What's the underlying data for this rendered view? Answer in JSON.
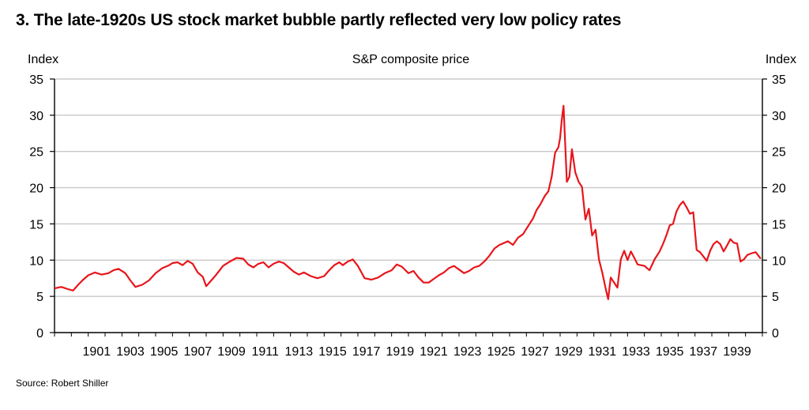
{
  "title": "3.  The late-1920s US stock market bubble partly reflected very low policy rates",
  "source": "Source: Robert Shiller",
  "chart_data": {
    "type": "line",
    "subtitle": "S&P composite price",
    "ylabel_left": "Index",
    "ylabel_right": "Index",
    "ylim": [
      0,
      35
    ],
    "yticks": [
      0,
      5,
      10,
      15,
      20,
      25,
      30,
      35
    ],
    "xlim": [
      1899,
      1941
    ],
    "xticks": [
      "1901",
      "1903",
      "1905",
      "1907",
      "1909",
      "1911",
      "1913",
      "1915",
      "1917",
      "1919",
      "1921",
      "1923",
      "1925",
      "1927",
      "1929",
      "1931",
      "1933",
      "1935",
      "1937",
      "1939"
    ],
    "grid": true,
    "legend": "none",
    "colors": {
      "line": "#e8151b",
      "grid": "#c8c8c8",
      "axis": "#000000"
    },
    "series": [
      {
        "x": [
          1899.0,
          1899.4,
          1899.8,
          1900.1,
          1900.4,
          1900.7,
          1901.0,
          1901.4,
          1901.8,
          1902.2,
          1902.5,
          1902.8,
          1903.2,
          1903.5,
          1903.8,
          1904.2,
          1904.6,
          1905.0,
          1905.4,
          1905.8,
          1906.0,
          1906.3,
          1906.6,
          1906.9,
          1907.2,
          1907.5,
          1907.8,
          1908.0,
          1908.3,
          1908.6,
          1909.0,
          1909.4,
          1909.8,
          1910.2,
          1910.5,
          1910.8,
          1911.1,
          1911.4,
          1911.7,
          1912.0,
          1912.3,
          1912.6,
          1912.9,
          1913.2,
          1913.5,
          1913.8,
          1914.2,
          1914.6,
          1915.0,
          1915.3,
          1915.6,
          1915.9,
          1916.1,
          1916.4,
          1916.7,
          1917.0,
          1917.4,
          1917.8,
          1918.2,
          1918.6,
          1919.0,
          1919.3,
          1919.6,
          1920.0,
          1920.3,
          1920.6,
          1920.9,
          1921.2,
          1921.5,
          1921.8,
          1922.1,
          1922.4,
          1922.7,
          1923.0,
          1923.3,
          1923.6,
          1923.9,
          1924.2,
          1924.5,
          1924.8,
          1925.1,
          1925.4,
          1925.6,
          1925.9,
          1926.2,
          1926.5,
          1926.8,
          1927.1,
          1927.4,
          1927.6,
          1927.8,
          1928.1,
          1928.3,
          1928.5,
          1928.7,
          1928.9,
          1929.0,
          1929.1,
          1929.2,
          1929.4,
          1929.55,
          1929.7,
          1929.9,
          1930.1,
          1930.3,
          1930.5,
          1930.7,
          1930.9,
          1931.1,
          1931.3,
          1931.5,
          1931.7,
          1931.85,
          1932.0,
          1932.2,
          1932.4,
          1932.6,
          1932.8,
          1933.0,
          1933.2,
          1933.4,
          1933.6,
          1933.8,
          1934.0,
          1934.3,
          1934.6,
          1934.9,
          1935.1,
          1935.3,
          1935.5,
          1935.7,
          1935.9,
          1936.1,
          1936.3,
          1936.5,
          1936.7,
          1936.9,
          1937.1,
          1937.3,
          1937.5,
          1937.7,
          1937.9,
          1938.1,
          1938.3,
          1938.5,
          1938.7,
          1938.9,
          1939.1,
          1939.3,
          1939.5,
          1939.7,
          1939.9,
          1940.1,
          1940.3,
          1940.6,
          1940.9
        ],
        "values": [
          6.1,
          6.3,
          6.0,
          5.8,
          6.6,
          7.3,
          7.9,
          8.3,
          8.0,
          8.2,
          8.6,
          8.8,
          8.2,
          7.2,
          6.3,
          6.6,
          7.2,
          8.2,
          8.9,
          9.3,
          9.6,
          9.7,
          9.3,
          9.9,
          9.5,
          8.3,
          7.7,
          6.4,
          7.2,
          8.0,
          9.2,
          9.8,
          10.3,
          10.2,
          9.4,
          9.0,
          9.5,
          9.7,
          9.0,
          9.5,
          9.8,
          9.6,
          9.0,
          8.4,
          8.0,
          8.3,
          7.8,
          7.5,
          7.8,
          8.6,
          9.3,
          9.7,
          9.3,
          9.8,
          10.1,
          9.2,
          7.5,
          7.3,
          7.6,
          8.2,
          8.6,
          9.4,
          9.1,
          8.2,
          8.5,
          7.6,
          6.9,
          6.9,
          7.4,
          7.9,
          8.3,
          8.9,
          9.2,
          8.7,
          8.2,
          8.5,
          9.0,
          9.2,
          9.8,
          10.6,
          11.6,
          12.1,
          12.3,
          12.6,
          12.1,
          13.1,
          13.6,
          14.7,
          15.8,
          16.9,
          17.6,
          18.9,
          19.5,
          21.5,
          24.8,
          25.6,
          26.9,
          29.4,
          31.3,
          20.8,
          21.5,
          25.3,
          22.1,
          20.8,
          20.1,
          15.6,
          17.1,
          13.4,
          14.2,
          10.1,
          8.3,
          6.1,
          4.6,
          7.6,
          6.9,
          6.2,
          10.1,
          11.3,
          10.0,
          11.2,
          10.3,
          9.4,
          9.3,
          9.2,
          8.6,
          10.1,
          11.2,
          12.2,
          13.4,
          14.8,
          15.0,
          16.7,
          17.6,
          18.1,
          17.3,
          16.4,
          16.6,
          11.4,
          11.1,
          10.5,
          9.9,
          11.3,
          12.2,
          12.6,
          12.2,
          11.2,
          12.0,
          12.9,
          12.4,
          12.3,
          9.8,
          10.1,
          10.7,
          10.9,
          11.1,
          10.2
        ]
      }
    ]
  }
}
